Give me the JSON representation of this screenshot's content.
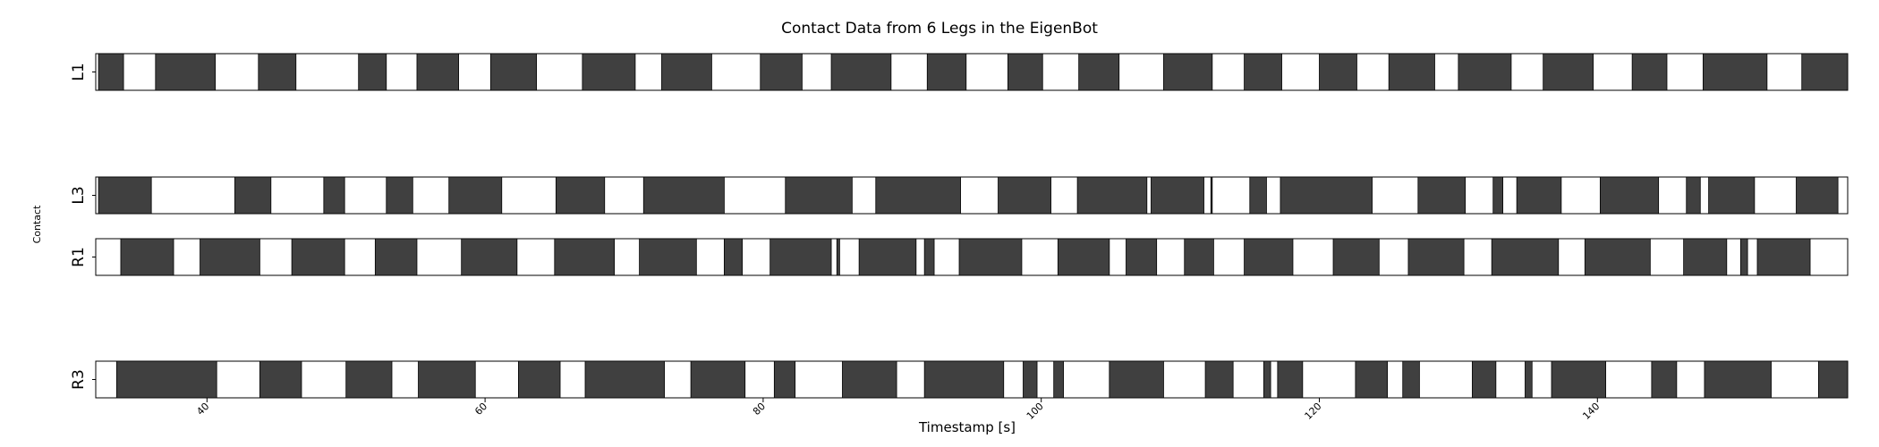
{
  "chart_data": {
    "type": "broken_barh",
    "title": "Contact Data from 6 Legs in the EigenBot",
    "xlabel": "Timestamp [s]",
    "ylabel": "Contact",
    "xlim": [
      32,
      158
    ],
    "x_ticks": [
      40,
      60,
      80,
      100,
      120,
      140
    ],
    "x_tick_labels": [
      "40",
      "60",
      "80",
      "100",
      "120",
      "140"
    ],
    "contact_color": "#404040",
    "rows": [
      {
        "label": "L1",
        "segments": [
          [
            32.2,
            34.0
          ],
          [
            36.3,
            40.6
          ],
          [
            43.7,
            46.4
          ],
          [
            50.9,
            52.9
          ],
          [
            55.1,
            58.1
          ],
          [
            60.4,
            63.7
          ],
          [
            67.0,
            70.8
          ],
          [
            72.7,
            76.3
          ],
          [
            79.8,
            82.8
          ],
          [
            84.9,
            89.2
          ],
          [
            91.8,
            94.6
          ],
          [
            97.6,
            100.1
          ],
          [
            102.7,
            105.6
          ],
          [
            108.8,
            112.3
          ],
          [
            114.6,
            117.3
          ],
          [
            120.0,
            122.7
          ],
          [
            125.0,
            128.3
          ],
          [
            130.0,
            133.8
          ],
          [
            136.1,
            139.7
          ],
          [
            142.5,
            145.0
          ],
          [
            147.6,
            152.2
          ],
          [
            154.7,
            158.5
          ]
        ]
      },
      {
        "label": "L3",
        "segments": [
          [
            32.2,
            36.0
          ],
          [
            42.0,
            44.6
          ],
          [
            48.4,
            49.9
          ],
          [
            52.9,
            54.8
          ],
          [
            57.4,
            61.2
          ],
          [
            65.1,
            68.6
          ],
          [
            71.4,
            77.2
          ],
          [
            81.6,
            86.4
          ],
          [
            88.1,
            94.2
          ],
          [
            96.9,
            100.7
          ],
          [
            102.6,
            107.6
          ],
          [
            107.9,
            111.7
          ],
          [
            112.2,
            112.3
          ],
          [
            115.0,
            116.2
          ],
          [
            117.2,
            123.8
          ],
          [
            127.1,
            130.5
          ],
          [
            132.5,
            133.2
          ],
          [
            134.2,
            137.4
          ],
          [
            140.2,
            144.4
          ],
          [
            146.4,
            147.4
          ],
          [
            148.0,
            151.3
          ],
          [
            154.3,
            157.3
          ]
        ]
      },
      {
        "label": "R1",
        "segments": [
          [
            33.8,
            37.6
          ],
          [
            39.5,
            43.8
          ],
          [
            46.1,
            49.9
          ],
          [
            52.1,
            55.1
          ],
          [
            58.3,
            62.3
          ],
          [
            65.0,
            69.3
          ],
          [
            71.1,
            75.2
          ],
          [
            77.2,
            78.5
          ],
          [
            80.5,
            84.9
          ],
          [
            85.3,
            85.5
          ],
          [
            86.9,
            91.0
          ],
          [
            91.6,
            92.3
          ],
          [
            94.1,
            98.6
          ],
          [
            101.2,
            104.9
          ],
          [
            106.1,
            108.3
          ],
          [
            110.3,
            112.4
          ],
          [
            114.6,
            118.1
          ],
          [
            121.0,
            124.3
          ],
          [
            126.4,
            130.4
          ],
          [
            132.4,
            137.2
          ],
          [
            139.1,
            143.8
          ],
          [
            146.2,
            149.3
          ],
          [
            150.3,
            150.8
          ],
          [
            151.5,
            155.3
          ]
        ]
      },
      {
        "label": "R3",
        "segments": [
          [
            33.5,
            40.7
          ],
          [
            43.8,
            46.8
          ],
          [
            50.0,
            53.3
          ],
          [
            55.2,
            59.3
          ],
          [
            62.4,
            65.4
          ],
          [
            67.2,
            72.9
          ],
          [
            74.8,
            78.7
          ],
          [
            80.8,
            82.3
          ],
          [
            85.7,
            89.6
          ],
          [
            91.6,
            97.3
          ],
          [
            98.7,
            99.7
          ],
          [
            100.9,
            101.6
          ],
          [
            104.9,
            108.8
          ],
          [
            111.8,
            113.8
          ],
          [
            116.0,
            116.5
          ],
          [
            117.0,
            118.8
          ],
          [
            122.6,
            124.9
          ],
          [
            126.0,
            127.2
          ],
          [
            131.0,
            132.7
          ],
          [
            134.8,
            135.3
          ],
          [
            136.7,
            140.6
          ],
          [
            143.9,
            145.7
          ],
          [
            147.7,
            152.5
          ],
          [
            155.9,
            158.5
          ]
        ]
      }
    ]
  }
}
